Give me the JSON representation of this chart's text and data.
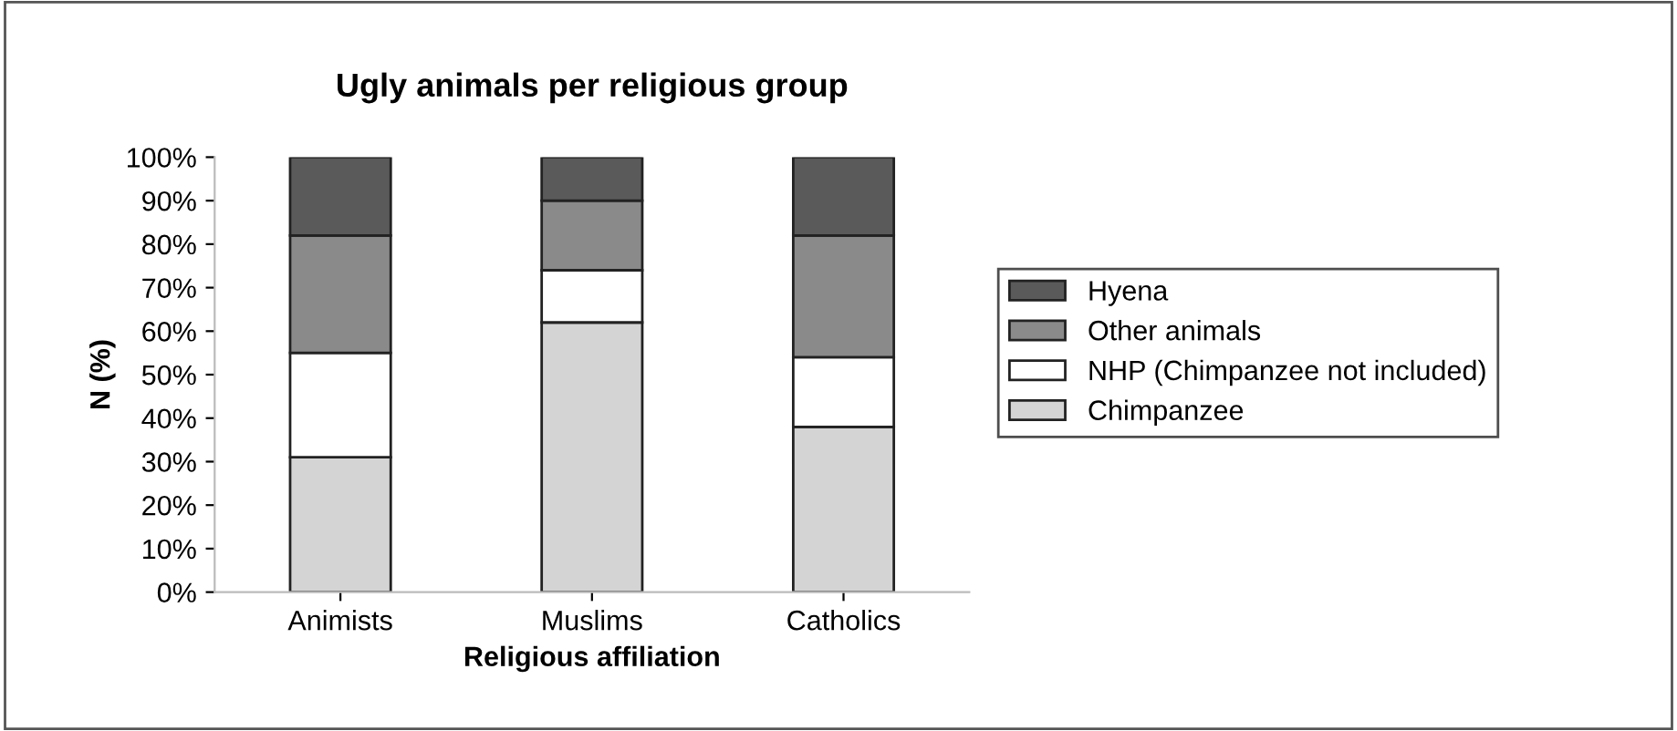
{
  "chart_data": {
    "type": "bar",
    "stacked": true,
    "title": "Ugly animals per religious group",
    "xlabel": "Religious affiliation",
    "ylabel": "N (%)",
    "categories": [
      "Animists",
      "Muslims",
      "Catholics"
    ],
    "series": [
      {
        "name": "Chimpanzee",
        "color": "#d4d4d4",
        "values": [
          31,
          62,
          38
        ]
      },
      {
        "name": "NHP (Chimpanzee not included)",
        "color": "#ffffff",
        "values": [
          24,
          12,
          16
        ]
      },
      {
        "name": "Other animals",
        "color": "#8a8a8a",
        "values": [
          27,
          16,
          28
        ]
      },
      {
        "name": "Hyena",
        "color": "#5a5a5a",
        "values": [
          18,
          10,
          18
        ]
      }
    ],
    "ylim": [
      0,
      100
    ],
    "yticks": [
      {
        "value": 0,
        "label": "0%"
      },
      {
        "value": 10,
        "label": "10%"
      },
      {
        "value": 20,
        "label": "20%"
      },
      {
        "value": 30,
        "label": "30%"
      },
      {
        "value": 40,
        "label": "40%"
      },
      {
        "value": 50,
        "label": "50%"
      },
      {
        "value": 60,
        "label": "60%"
      },
      {
        "value": 70,
        "label": "70%"
      },
      {
        "value": 80,
        "label": "80%"
      },
      {
        "value": 90,
        "label": "90%"
      },
      {
        "value": 100,
        "label": "100%"
      }
    ],
    "legend": "right",
    "grid": false
  }
}
